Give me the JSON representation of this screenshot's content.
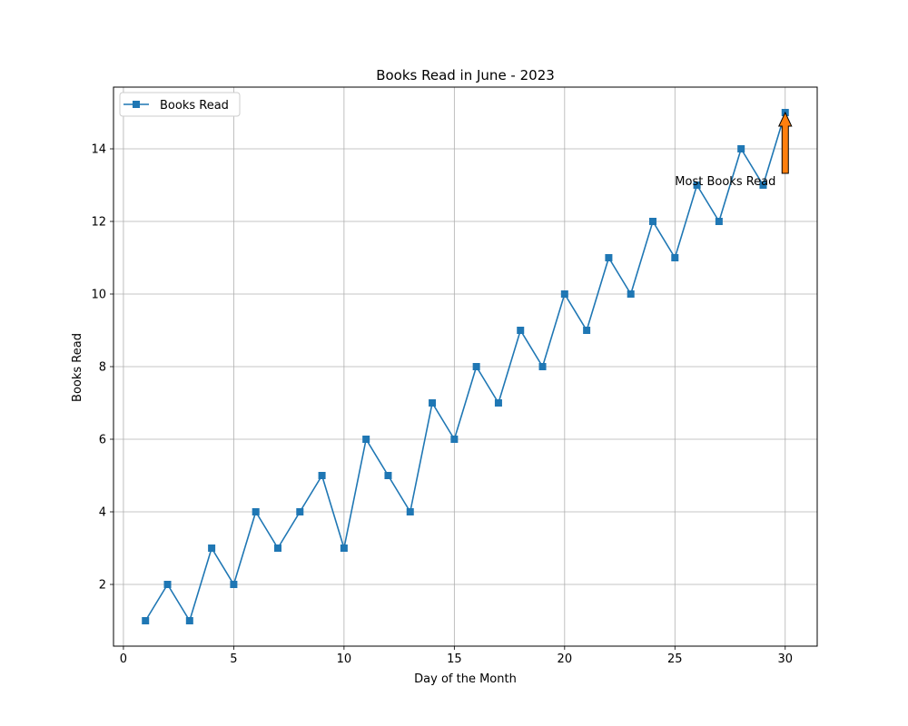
{
  "chart_data": {
    "type": "line",
    "title": "Books Read in June - 2023",
    "xlabel": "Day of the Month",
    "ylabel": "Books Read",
    "xlim": [
      -0.45,
      31.45
    ],
    "ylim": [
      0.3,
      15.7
    ],
    "xticks": [
      0,
      5,
      10,
      15,
      20,
      25,
      30
    ],
    "yticks": [
      2,
      4,
      6,
      8,
      10,
      12,
      14
    ],
    "grid": true,
    "legend_position": "top-left",
    "series": [
      {
        "name": "Books Read",
        "color": "#1f77b4",
        "marker": "square",
        "x": [
          1,
          2,
          3,
          4,
          5,
          6,
          7,
          8,
          9,
          10,
          11,
          12,
          13,
          14,
          15,
          16,
          17,
          18,
          19,
          20,
          21,
          22,
          23,
          24,
          25,
          26,
          27,
          28,
          29,
          30
        ],
        "y": [
          1,
          2,
          1,
          3,
          2,
          4,
          3,
          4,
          5,
          3,
          6,
          5,
          4,
          7,
          6,
          8,
          7,
          9,
          8,
          10,
          9,
          11,
          10,
          12,
          11,
          13,
          12,
          14,
          13,
          15
        ]
      }
    ],
    "annotation": {
      "text": "Most Books Read",
      "x": 30,
      "y": 15,
      "text_x": 25,
      "text_y": 13,
      "arrow_color": "#ff7f0e"
    }
  }
}
